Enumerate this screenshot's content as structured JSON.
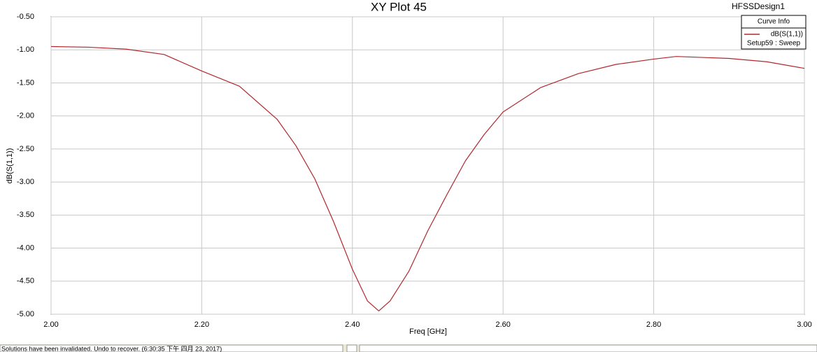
{
  "chart_data": {
    "type": "line",
    "title": "XY Plot 45",
    "design": "HFSSDesign1",
    "legend_title": "Curve Info",
    "legend_subtitle": "Setup59 : Sweep",
    "xlabel": "Freq [GHz]",
    "ylabel": "dB(S(1,1))",
    "x": [
      2.0,
      2.05,
      2.1,
      2.15,
      2.2,
      2.25,
      2.3,
      2.325,
      2.35,
      2.375,
      2.4,
      2.42,
      2.435,
      2.45,
      2.475,
      2.5,
      2.525,
      2.55,
      2.575,
      2.6,
      2.65,
      2.7,
      2.75,
      2.8,
      2.83,
      2.9,
      2.95,
      3.0
    ],
    "series": [
      {
        "name": "dB(S(1,1))",
        "color": "#b0282d",
        "values": [
          -0.95,
          -0.96,
          -0.99,
          -1.07,
          -1.32,
          -1.55,
          -2.05,
          -2.45,
          -2.95,
          -3.6,
          -4.32,
          -4.8,
          -4.95,
          -4.8,
          -4.35,
          -3.74,
          -3.2,
          -2.68,
          -2.28,
          -1.94,
          -1.57,
          -1.36,
          -1.22,
          -1.14,
          -1.1,
          -1.13,
          -1.18,
          -1.28
        ]
      }
    ],
    "xlim": [
      2.0,
      3.0
    ],
    "ylim": [
      -5.0,
      -0.5
    ],
    "xticks": [
      {
        "value": 2.0,
        "label": "2.00"
      },
      {
        "value": 2.2,
        "label": "2.20"
      },
      {
        "value": 2.4,
        "label": "2.40"
      },
      {
        "value": 2.6,
        "label": "2.60"
      },
      {
        "value": 2.8,
        "label": "2.80"
      },
      {
        "value": 3.0,
        "label": "3.00"
      }
    ],
    "yticks": [
      {
        "value": -0.5,
        "label": "-0.50"
      },
      {
        "value": -1.0,
        "label": "-1.00"
      },
      {
        "value": -1.5,
        "label": "-1.50"
      },
      {
        "value": -2.0,
        "label": "-2.00"
      },
      {
        "value": -2.5,
        "label": "-2.50"
      },
      {
        "value": -3.0,
        "label": "-3.00"
      },
      {
        "value": -3.5,
        "label": "-3.50"
      },
      {
        "value": -4.0,
        "label": "-4.00"
      },
      {
        "value": -4.5,
        "label": "-4.50"
      },
      {
        "value": -5.0,
        "label": "-5.00"
      }
    ],
    "grid": true
  },
  "status": "Solutions have been invalidated. Undo to recover. (6:30:35 下午 四月 23, 2017)"
}
